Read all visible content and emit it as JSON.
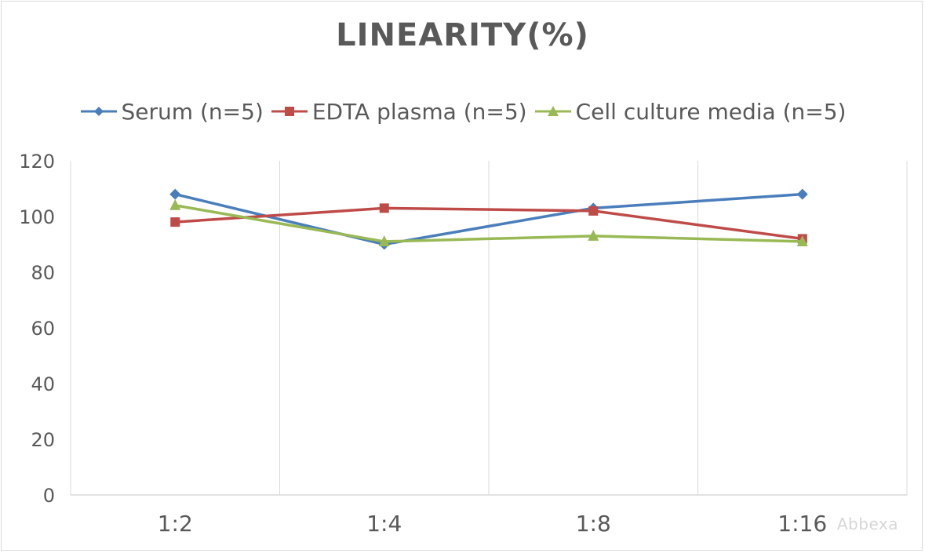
{
  "chart_data": {
    "type": "line",
    "title": "LINEARITY(%)",
    "categories": [
      "1:2",
      "1:4",
      "1:8",
      "1:16"
    ],
    "ylim": [
      0,
      120
    ],
    "yticks": [
      0,
      20,
      40,
      60,
      80,
      100,
      120
    ],
    "grid": "vertical",
    "legend_position": "top",
    "series": [
      {
        "name": "Serum (n=5)",
        "color": "#4a7ebb",
        "marker": "diamond",
        "values": [
          108,
          90,
          103,
          108
        ]
      },
      {
        "name": "EDTA plasma (n=5)",
        "color": "#be4b48",
        "marker": "square",
        "values": [
          98,
          103,
          102,
          92
        ]
      },
      {
        "name": "Cell culture media (n=5)",
        "color": "#98b954",
        "marker": "triangle",
        "values": [
          104,
          91,
          93,
          91
        ]
      }
    ]
  },
  "watermark": "Abbexa"
}
